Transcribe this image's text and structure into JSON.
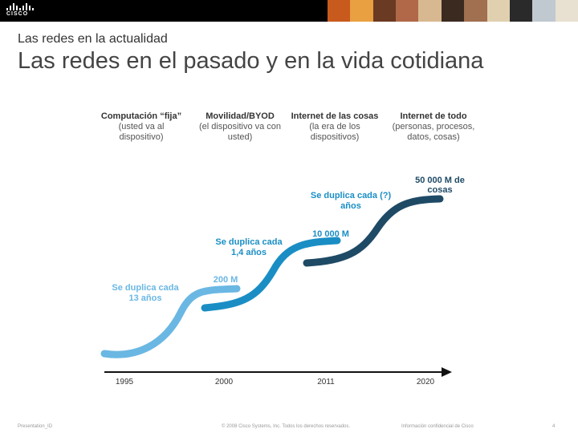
{
  "header": {
    "brand": "CISCO",
    "photo_colors": [
      "#c85a1e",
      "#e8a040",
      "#6a3a22",
      "#b06848",
      "#d8b890",
      "#3a2a20",
      "#a07050",
      "#e0d0b0",
      "#2a2a2a",
      "#c0c8d0",
      "#e8e0d0"
    ]
  },
  "subtitle": "Las redes en la actualidad",
  "title": "Las redes en el pasado y en la vida cotidiana",
  "columns": [
    {
      "heading": "Computación “fija”",
      "desc": [
        "(usted va al",
        "dispositivo)"
      ]
    },
    {
      "heading": "Movilidad/BYOD",
      "desc": [
        "(el dispositivo va con",
        "usted)"
      ]
    },
    {
      "heading": "Internet de las cosas",
      "desc": [
        "(la era de los",
        "dispositivos)"
      ]
    },
    {
      "heading": "Internet de todo",
      "desc": [
        "(personas, procesos,",
        "datos, cosas)"
      ]
    }
  ],
  "timeline": {
    "years": [
      "1995",
      "2000",
      "2011",
      "2020"
    ]
  },
  "segments": [
    {
      "note": [
        "Se duplica cada",
        "13 años"
      ],
      "endpoint": "200 M",
      "color": "#6ab7e3"
    },
    {
      "note": [
        "Se duplica cada",
        "1,4 años"
      ],
      "endpoint": "10 000 M",
      "color": "#1a8ec4"
    },
    {
      "note": [
        "Se duplica cada (?)",
        "años"
      ],
      "endpoint": [
        "50 000 M de",
        "cosas"
      ],
      "color": "#1e4a66"
    }
  ],
  "footer": {
    "left": "Presentation_ID",
    "center": "© 2008 Cisco Systems, Inc. Todos los derechos reservados.",
    "right": "Información confidencial de Cisco",
    "page": "4"
  }
}
